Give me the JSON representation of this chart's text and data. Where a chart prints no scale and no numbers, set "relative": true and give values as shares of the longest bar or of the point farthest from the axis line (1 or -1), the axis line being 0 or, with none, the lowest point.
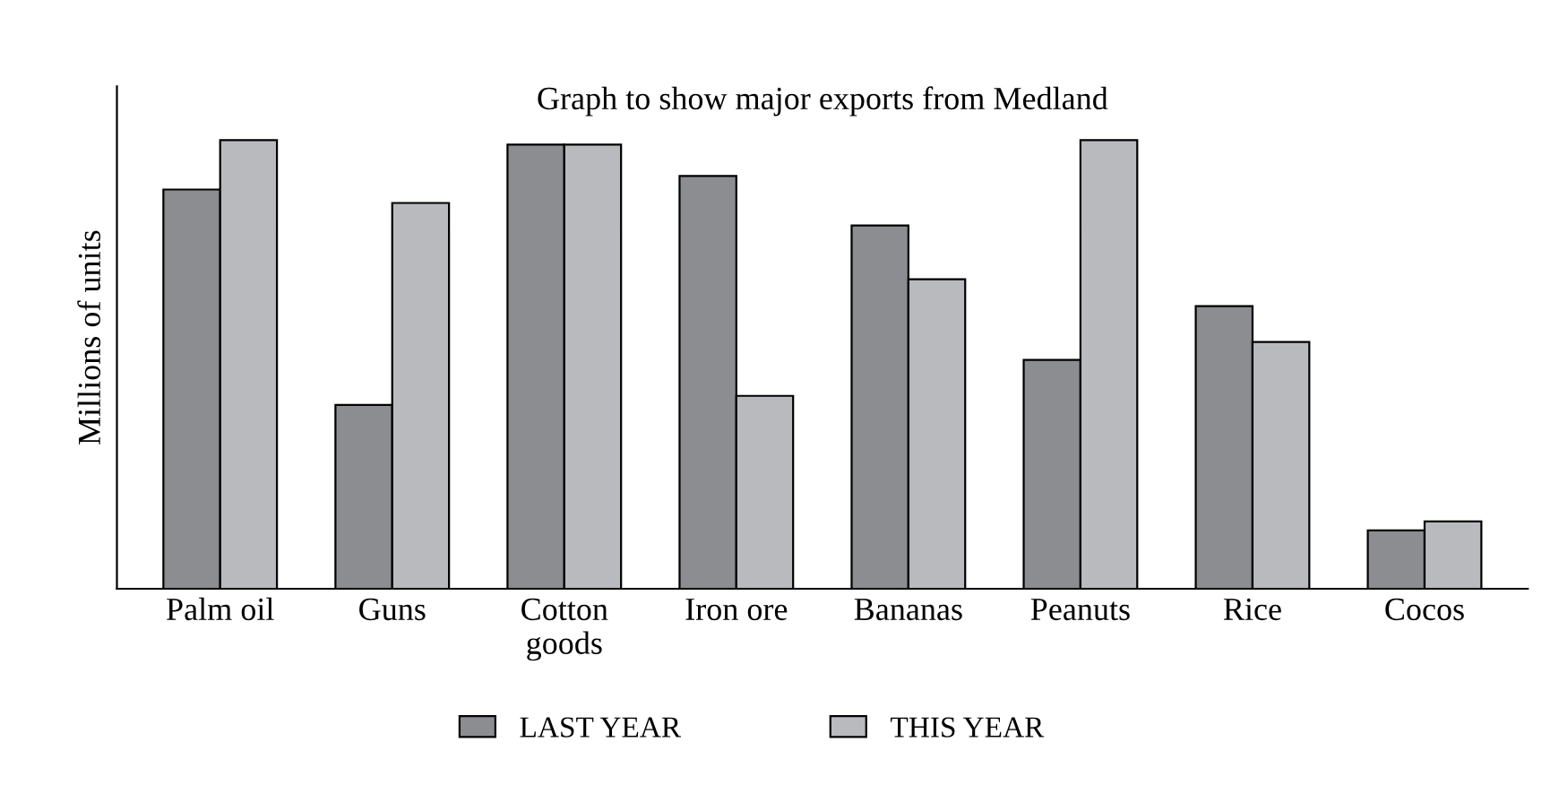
{
  "chart_data": {
    "type": "bar",
    "title": "Graph to show major exports from Medland",
    "ylabel": "Millions of units",
    "categories": [
      "Palm oil",
      "Guns",
      "Cotton\ngoods",
      "Iron ore",
      "Bananas",
      "Peanuts",
      "Rice",
      "Cocos"
    ],
    "relative": true,
    "legend": "bottom",
    "grid": false,
    "series": [
      {
        "name": "LAST YEAR",
        "color": "#8c8d91",
        "values": [
          0.89,
          0.41,
          0.99,
          0.92,
          0.81,
          0.51,
          0.63,
          0.13
        ]
      },
      {
        "name": "THIS YEAR",
        "color": "#b9babe",
        "values": [
          1.0,
          0.86,
          0.99,
          0.43,
          0.69,
          1.0,
          0.55,
          0.15
        ]
      }
    ]
  }
}
